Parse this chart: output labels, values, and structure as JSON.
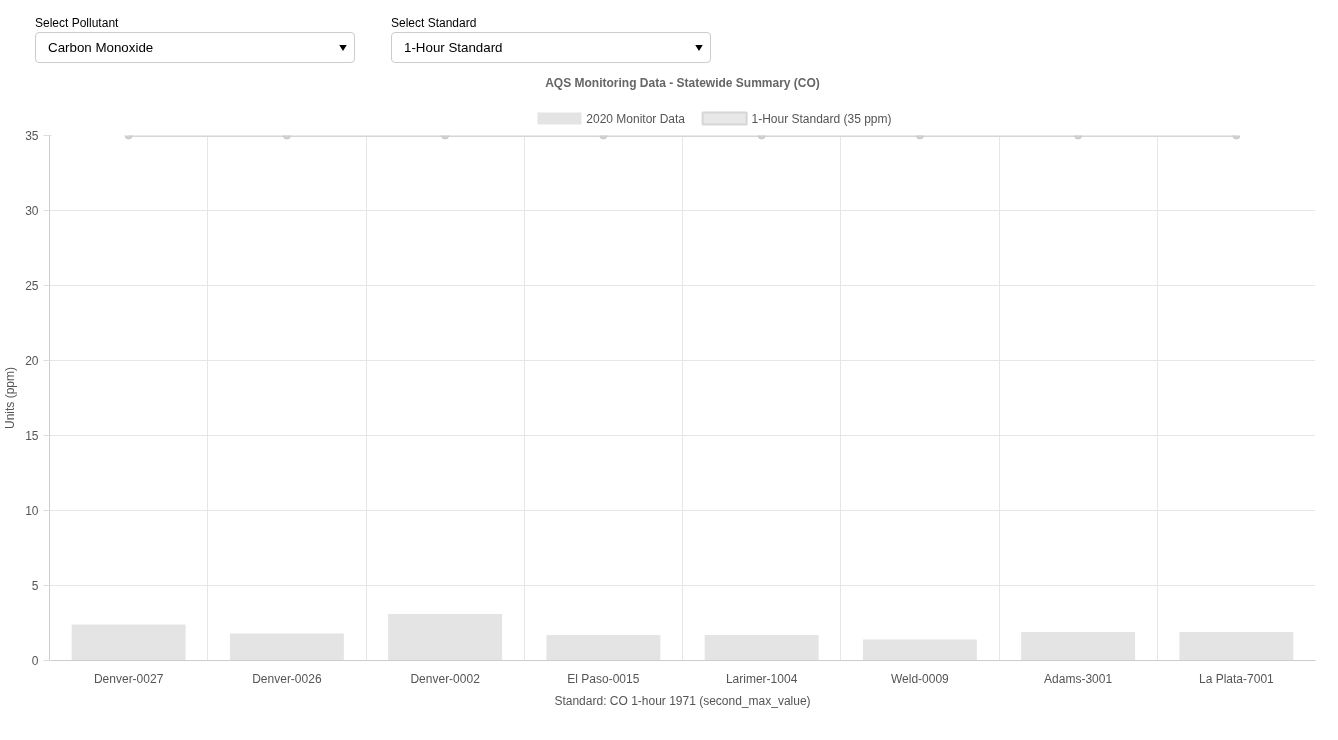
{
  "chart_data": {
    "type": "bar",
    "title": "AQS Monitoring Data - Statewide Summary (CO)",
    "xlabel": "Standard: CO 1-hour 1971 (second_max_value)",
    "ylabel": "Units (ppm)",
    "categories": [
      "Denver-0027",
      "Denver-0026",
      "Denver-0002",
      "El Paso-0015",
      "Larimer-1004",
      "Weld-0009",
      "Adams-3001",
      "La Plata-7001"
    ],
    "series": [
      {
        "name": "2020 Monitor Data",
        "color": "#e4e4e4",
        "values": [
          2.4,
          1.8,
          3.1,
          1.7,
          1.7,
          1.4,
          1.9,
          1.9
        ]
      },
      {
        "name": "1-Hour Standard (35 ppm)",
        "type": "line",
        "color": "#d6d6d6",
        "marker": "circle",
        "values": [
          35,
          35,
          35,
          35,
          35,
          35,
          35,
          35
        ]
      }
    ],
    "annotations": [
      "Select Pollutant",
      "Carbon Monoxide",
      "Select Standard",
      "1-Hour Standard"
    ],
    "ylim": [
      0,
      35
    ],
    "yticks": [
      0,
      5,
      10,
      15,
      20,
      25,
      30,
      35
    ],
    "grid": true,
    "legend": "top"
  }
}
